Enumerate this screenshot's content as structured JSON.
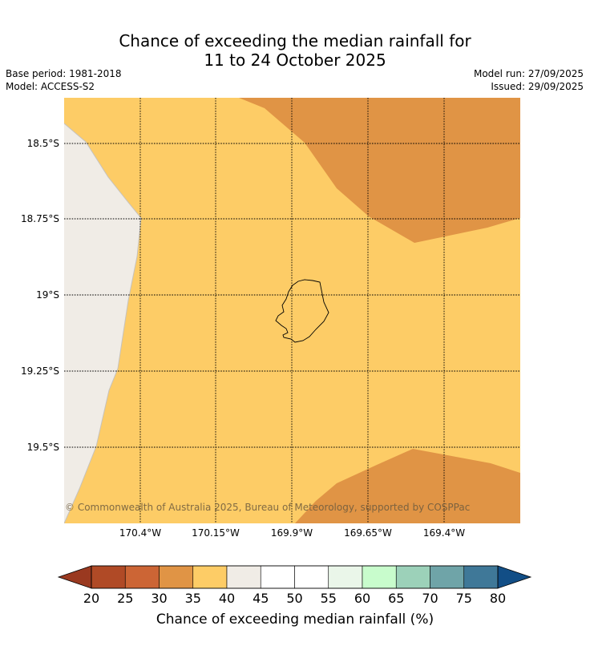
{
  "title_line1": "Chance of exceeding the median rainfall for",
  "title_line2": "11 to 24 October 2025",
  "base_period": "Base period: 1981-2018",
  "model": "Model: ACCESS-S2",
  "model_run": "Model run: 27/09/2025",
  "issued": "Issued: 29/09/2025",
  "copyright": "© Commonwealth of Australia 2025, Bureau of Meteorology, supported by COSPPac",
  "lat_labels": [
    "18.5°S",
    "18.75°S",
    "19°S",
    "19.25°S",
    "19.5°S"
  ],
  "lon_labels": [
    "170.4°W",
    "170.15°W",
    "169.9°W",
    "169.65°W",
    "169.4°W"
  ],
  "colorbar": {
    "label": "Chance of exceeding median rainfall (%)",
    "ticks": [
      "20",
      "25",
      "30",
      "35",
      "40",
      "45",
      "50",
      "55",
      "60",
      "65",
      "70",
      "75",
      "80"
    ],
    "under_color": "#9a3920",
    "over_color": "#124e86",
    "colors": [
      "#b04a26",
      "#cc6535",
      "#e09445",
      "#fdcc66",
      "#f0ece6",
      "#ffffff",
      "#ffffff",
      "#eaf6e9",
      "#c8fccc",
      "#9cd1b9",
      "#6fa4a8",
      "#3f7898"
    ]
  },
  "map_colors": {
    "band_35_40": "#fdcc66",
    "band_30_35": "#e09445",
    "band_40_45": "#f0ece6"
  }
}
